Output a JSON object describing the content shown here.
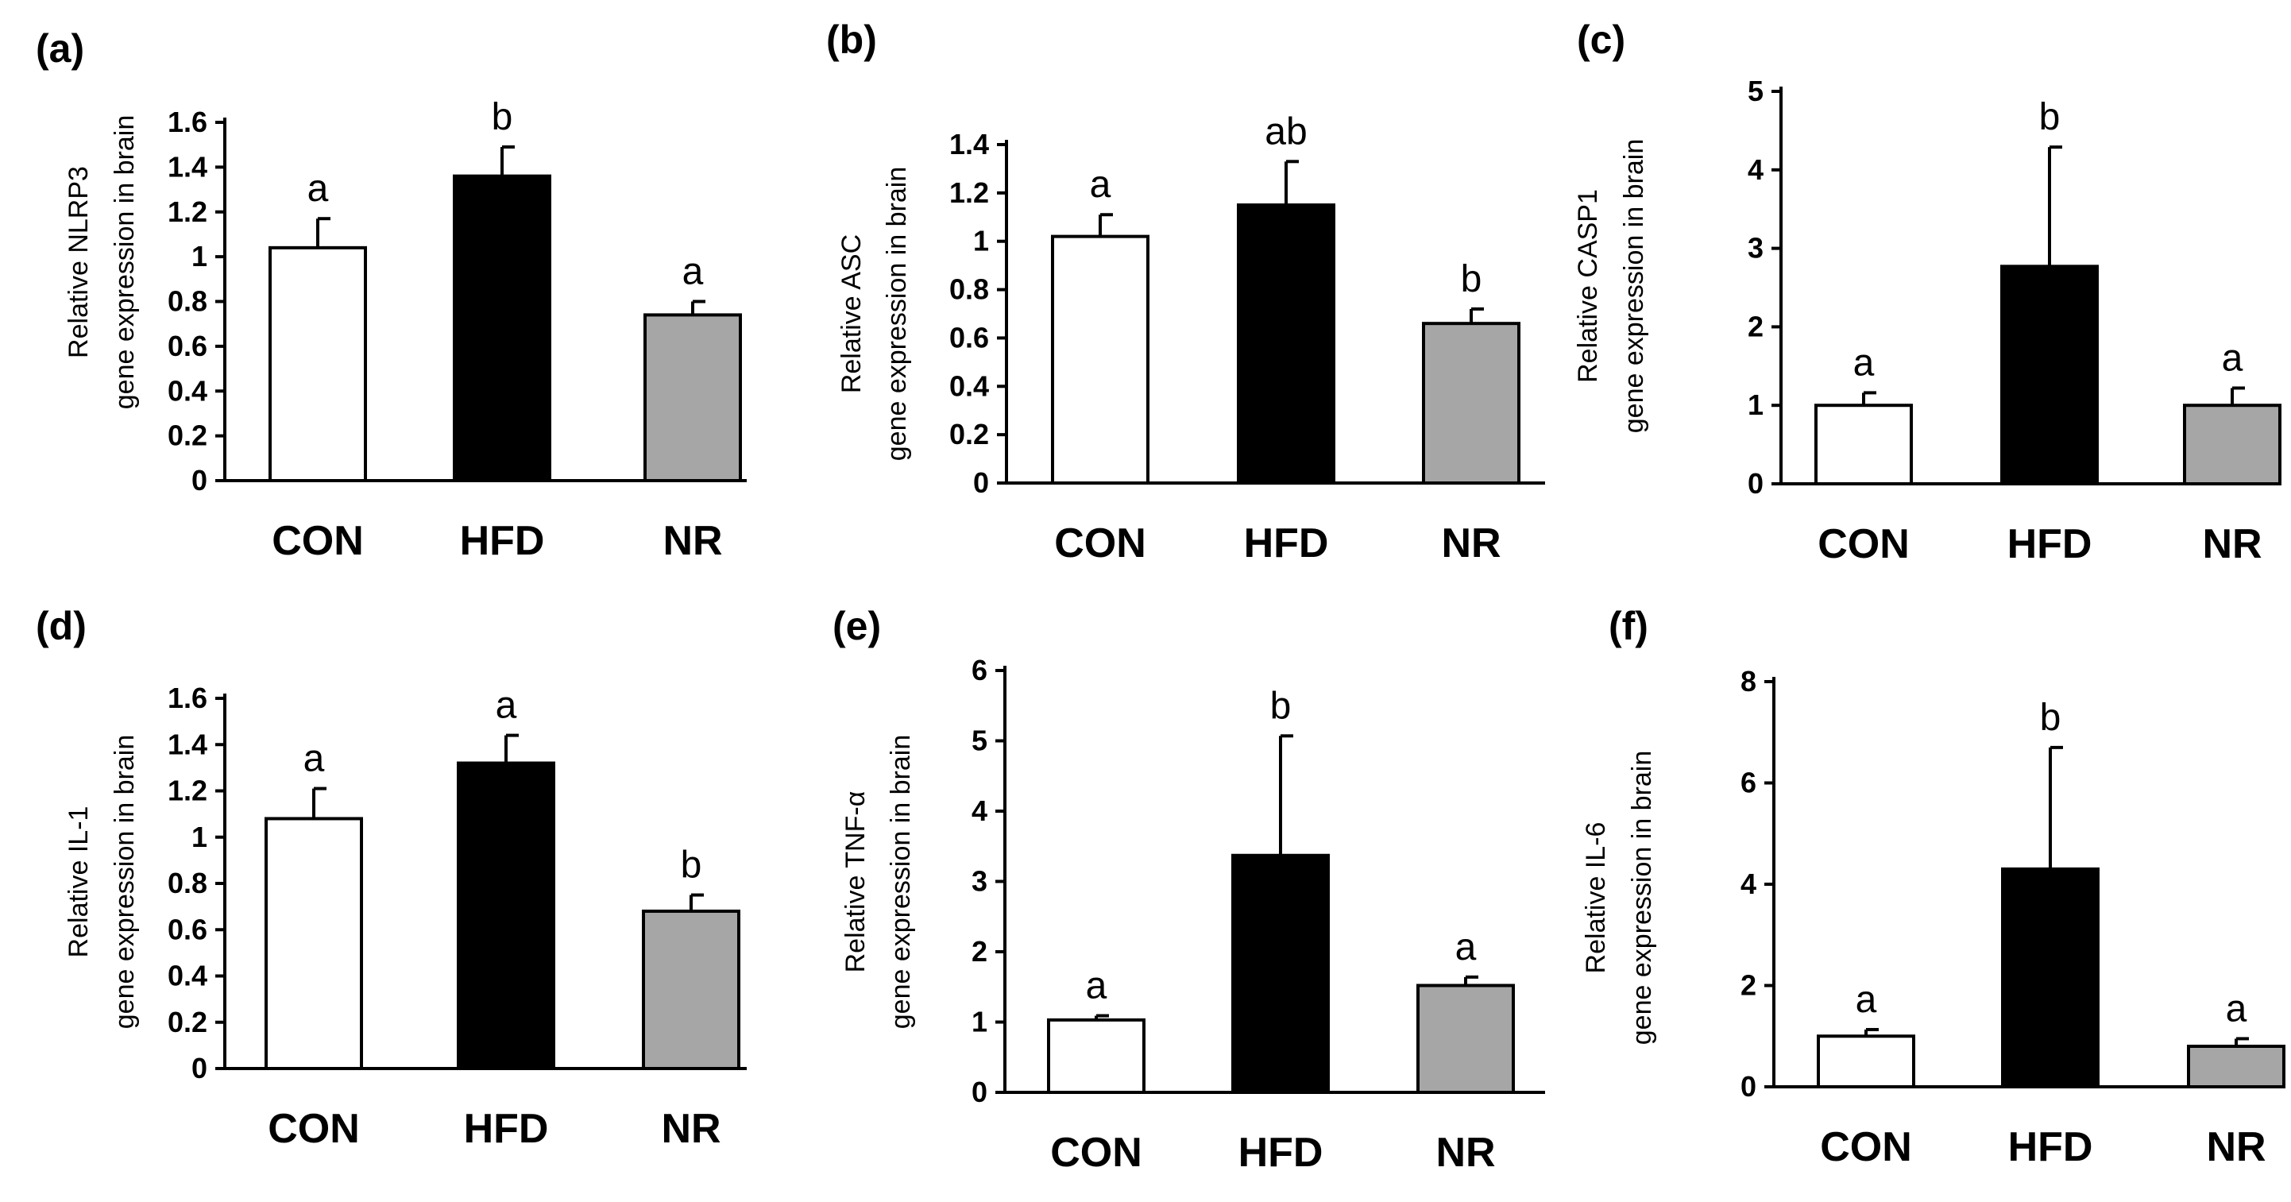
{
  "chart_data": [
    {
      "type": "bar",
      "panel": "(a)",
      "ylabel": [
        "Relative NLRP3",
        "gene expression in brain"
      ],
      "categories": [
        "CON",
        "HFD",
        "NR"
      ],
      "values": [
        1.04,
        1.36,
        0.74
      ],
      "errors": [
        0.13,
        0.13,
        0.06
      ],
      "letters": [
        "a",
        "b",
        "a"
      ],
      "colors": [
        "#ffffff",
        "#000000",
        "#a6a6a6"
      ],
      "ylim": [
        0,
        1.6
      ],
      "ticks": [
        "0",
        "0.2",
        "0.4",
        "0.6",
        "0.8",
        "1",
        "1.2",
        "1.4",
        "1.6"
      ]
    },
    {
      "type": "bar",
      "panel": "(b)",
      "ylabel": [
        "Relative ASC",
        "gene expression in brain"
      ],
      "categories": [
        "CON",
        "HFD",
        "NR"
      ],
      "values": [
        1.02,
        1.15,
        0.66
      ],
      "errors": [
        0.09,
        0.18,
        0.06
      ],
      "letters": [
        "a",
        "ab",
        "b"
      ],
      "colors": [
        "#ffffff",
        "#000000",
        "#a6a6a6"
      ],
      "ylim": [
        0,
        1.4
      ],
      "ticks": [
        "0",
        "0.2",
        "0.4",
        "0.6",
        "0.8",
        "1",
        "1.2",
        "1.4"
      ]
    },
    {
      "type": "bar",
      "panel": "(c)",
      "ylabel": [
        "Relative CASP1",
        "gene expression in brain"
      ],
      "categories": [
        "CON",
        "HFD",
        "NR"
      ],
      "values": [
        1.0,
        2.77,
        1.0
      ],
      "errors": [
        0.16,
        1.52,
        0.22
      ],
      "letters": [
        "a",
        "b",
        "a"
      ],
      "colors": [
        "#ffffff",
        "#000000",
        "#a6a6a6"
      ],
      "ylim": [
        0,
        5
      ],
      "ticks": [
        "0",
        "1",
        "2",
        "3",
        "4",
        "5"
      ]
    },
    {
      "type": "bar",
      "panel": "(d)",
      "ylabel": [
        "Relative IL-1",
        "gene expression in brain"
      ],
      "categories": [
        "CON",
        "HFD",
        "NR"
      ],
      "values": [
        1.08,
        1.32,
        0.68
      ],
      "errors": [
        0.13,
        0.12,
        0.07
      ],
      "letters": [
        "a",
        "a",
        "b"
      ],
      "colors": [
        "#ffffff",
        "#000000",
        "#a6a6a6"
      ],
      "ylim": [
        0,
        1.6
      ],
      "ticks": [
        "0",
        "0.2",
        "0.4",
        "0.6",
        "0.8",
        "1",
        "1.2",
        "1.4",
        "1.6"
      ]
    },
    {
      "type": "bar",
      "panel": "(e)",
      "ylabel": [
        "Relative TNF-α",
        "gene expression in brain"
      ],
      "categories": [
        "CON",
        "HFD",
        "NR"
      ],
      "values": [
        1.03,
        3.37,
        1.52
      ],
      "errors": [
        0.06,
        1.7,
        0.12
      ],
      "letters": [
        "a",
        "b",
        "a"
      ],
      "colors": [
        "#ffffff",
        "#000000",
        "#a6a6a6"
      ],
      "ylim": [
        0,
        6
      ],
      "ticks": [
        "0",
        "1",
        "2",
        "3",
        "4",
        "5",
        "6"
      ]
    },
    {
      "type": "bar",
      "panel": "(f)",
      "ylabel": [
        "Relative IL-6",
        "gene expression in brain"
      ],
      "categories": [
        "CON",
        "HFD",
        "NR"
      ],
      "values": [
        1.0,
        4.3,
        0.8
      ],
      "errors": [
        0.13,
        2.4,
        0.15
      ],
      "letters": [
        "a",
        "b",
        "a"
      ],
      "colors": [
        "#ffffff",
        "#000000",
        "#a6a6a6"
      ],
      "ylim": [
        0,
        8
      ],
      "ticks": [
        "0",
        "2",
        "4",
        "6",
        "8"
      ]
    }
  ]
}
